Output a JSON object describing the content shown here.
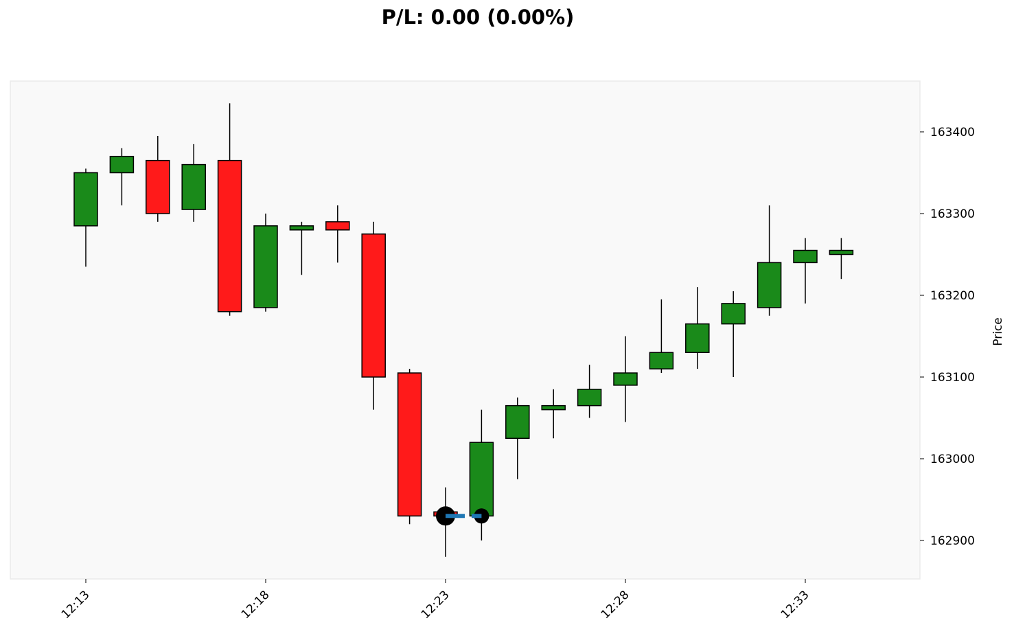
{
  "chart_data": {
    "type": "candlestick",
    "title": "P/L: 0.00 (0.00%)",
    "ylabel": "Price",
    "xlabel": "",
    "ylim": [
      162850,
      163460
    ],
    "yticks": [
      162900,
      163000,
      163100,
      163200,
      163300,
      163400
    ],
    "xticks": [
      "12:13",
      "12:18",
      "12:23",
      "12:28",
      "12:33"
    ],
    "grid": false,
    "colors": {
      "up": "#1a8a1a",
      "down": "#ff1a1a",
      "trade_line": "#1f77b4",
      "marker": "#000000",
      "background": "#f9f9f9"
    },
    "candles": [
      {
        "t": "12:13",
        "o": 163285,
        "h": 163355,
        "l": 163235,
        "c": 163350
      },
      {
        "t": "12:14",
        "o": 163350,
        "h": 163380,
        "l": 163310,
        "c": 163370
      },
      {
        "t": "12:15",
        "o": 163365,
        "h": 163395,
        "l": 163290,
        "c": 163300
      },
      {
        "t": "12:16",
        "o": 163305,
        "h": 163385,
        "l": 163290,
        "c": 163360
      },
      {
        "t": "12:17",
        "o": 163365,
        "h": 163435,
        "l": 163175,
        "c": 163180
      },
      {
        "t": "12:18",
        "o": 163185,
        "h": 163300,
        "l": 163180,
        "c": 163285
      },
      {
        "t": "12:19",
        "o": 163280,
        "h": 163290,
        "l": 163225,
        "c": 163285
      },
      {
        "t": "12:20",
        "o": 163290,
        "h": 163310,
        "l": 163240,
        "c": 163280
      },
      {
        "t": "12:21",
        "o": 163275,
        "h": 163290,
        "l": 163060,
        "c": 163100
      },
      {
        "t": "12:22",
        "o": 163105,
        "h": 163110,
        "l": 162920,
        "c": 162930
      },
      {
        "t": "12:23",
        "o": 162935,
        "h": 162965,
        "l": 162880,
        "c": 162930
      },
      {
        "t": "12:24",
        "o": 162930,
        "h": 163060,
        "l": 162900,
        "c": 163020
      },
      {
        "t": "12:25",
        "o": 163025,
        "h": 163075,
        "l": 162975,
        "c": 163065
      },
      {
        "t": "12:26",
        "o": 163060,
        "h": 163085,
        "l": 163025,
        "c": 163065
      },
      {
        "t": "12:27",
        "o": 163065,
        "h": 163115,
        "l": 163050,
        "c": 163085
      },
      {
        "t": "12:28",
        "o": 163090,
        "h": 163150,
        "l": 163045,
        "c": 163105
      },
      {
        "t": "12:29",
        "o": 163110,
        "h": 163195,
        "l": 163105,
        "c": 163130
      },
      {
        "t": "12:30",
        "o": 163130,
        "h": 163210,
        "l": 163110,
        "c": 163165
      },
      {
        "t": "12:31",
        "o": 163165,
        "h": 163205,
        "l": 163100,
        "c": 163190
      },
      {
        "t": "12:32",
        "o": 163185,
        "h": 163310,
        "l": 163175,
        "c": 163240
      },
      {
        "t": "12:33",
        "o": 163240,
        "h": 163270,
        "l": 163190,
        "c": 163255
      },
      {
        "t": "12:34",
        "o": 163250,
        "h": 163270,
        "l": 163220,
        "c": 163255
      }
    ],
    "trades": [
      {
        "entry_index": 10,
        "exit_index": 11,
        "entry_price": 162930,
        "exit_price": 162930
      }
    ]
  }
}
